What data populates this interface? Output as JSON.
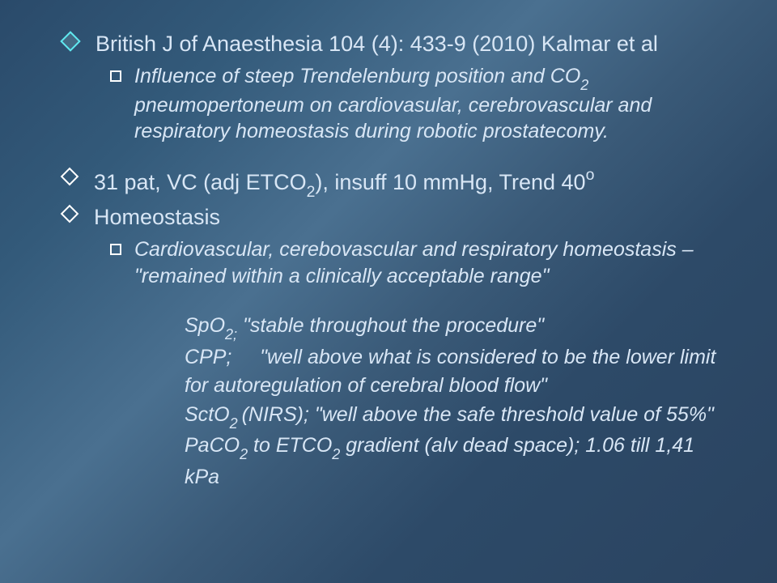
{
  "background_colors": [
    "#2a4a6a",
    "#335a7a",
    "#4a7090",
    "#3a5a78",
    "#2d4a68",
    "#2a4360"
  ],
  "text_color": "#d8e6f5",
  "bullet_colors": {
    "level1_diamond": "#5fe8f0",
    "level2_square": "#ffffff",
    "level3_diamond": "#ffffff"
  },
  "font_family": "Trebuchet MS",
  "slide": {
    "title_pre": "British J of Anaesthesia 104 (4): 433-9 (2010) Kalmar et al",
    "sub1_pre": "Influence of steep Trendelenburg position and CO",
    "sub1_sub": "2",
    "sub1_post": " pneumopertoneum on cardiovasular, cerebrovascular and respiratory homeostasis during robotic prostatecomy.",
    "l1b_pre": "31 pat, VC (adj ETCO",
    "l1b_sub": "2",
    "l1b_mid": "), insuff 10 mmHg, Trend 40",
    "l1b_sup": "o",
    "l1c": "Homeostasis",
    "sub2": "Cardiovascular, cerebovascular and respiratory homeostasis – \"remained within a clinically acceptable range\"",
    "line_spo_pre": "SpO",
    "line_spo_sub": "2;",
    "line_spo_post": "  \"stable throughout the procedure\"",
    "line_cpp": "CPP;     \"well above what is considered to be the lower limit for autoregulation of cerebral blood flow\"",
    "line_scto_pre": "SctO",
    "line_scto_sub": "2 ",
    "line_scto_post": "(NIRS);  \"well above the safe threshold value of 55%\"",
    "line_paco_pre": "PaCO",
    "line_paco_sub1": "2",
    "line_paco_mid": " to ETCO",
    "line_paco_sub2": "2",
    "line_paco_post": " gradient (alv dead space); 1.06 till 1,41 kPa"
  }
}
